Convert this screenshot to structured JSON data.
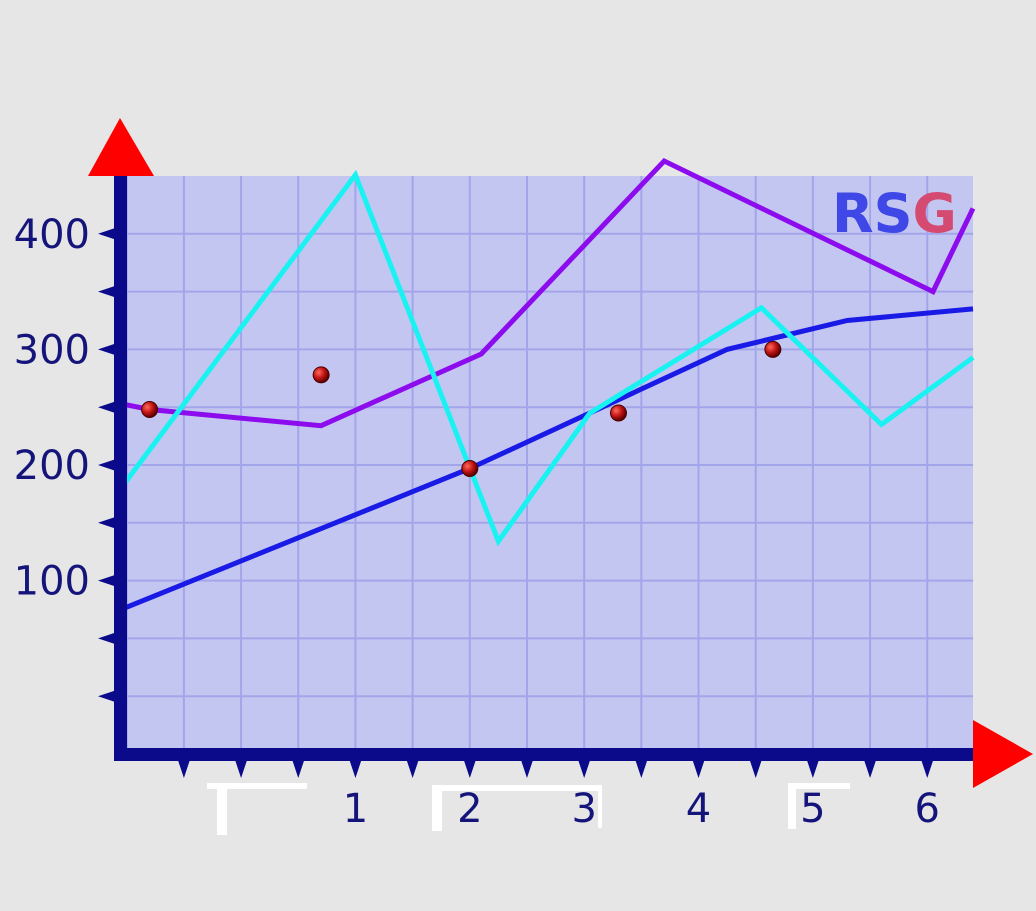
{
  "chart_data": {
    "type": "line",
    "title": "",
    "xlabel": "",
    "ylabel": "",
    "xlim": [
      -1.05,
      6.4
    ],
    "ylim": [
      -50,
      450
    ],
    "x_ticks": [
      1,
      2,
      3,
      4,
      5,
      6
    ],
    "y_ticks": [
      100,
      200,
      300,
      400
    ],
    "grid": true,
    "legend": "none",
    "logo": {
      "r": "R",
      "s": "S",
      "g": "G"
    },
    "series": [
      {
        "color": "#1a1ae6",
        "x": [
          -1.05,
          2.0,
          4.25,
          5.3,
          6.4
        ],
        "y": [
          75,
          197,
          300,
          325,
          335
        ]
      },
      {
        "color": "#8c0cee",
        "x": [
          -1.05,
          -0.8,
          0.7,
          2.1,
          3.7,
          6.05,
          6.4
        ],
        "y": [
          253,
          248,
          234,
          296,
          463,
          350,
          422
        ]
      },
      {
        "color": "#1af2f2",
        "x": [
          -1.05,
          1.0,
          2.25,
          3.05,
          4.55,
          5.6,
          6.4
        ],
        "y": [
          180,
          451,
          134,
          245,
          336,
          235,
          293
        ]
      }
    ],
    "markers": [
      {
        "x": -0.8,
        "y": 248
      },
      {
        "x": 0.7,
        "y": 278
      },
      {
        "x": 2.0,
        "y": 197
      },
      {
        "x": 3.3,
        "y": 245
      },
      {
        "x": 4.65,
        "y": 300
      }
    ]
  }
}
